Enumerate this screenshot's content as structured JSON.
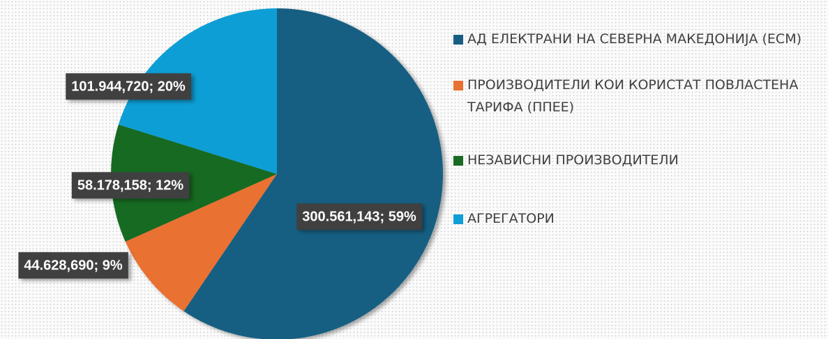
{
  "chart_data": {
    "type": "pie",
    "categories": [
      "АД ЕЛЕКТРАНИ НА СЕВЕРНА МАКЕДОНИЈА (ЕСМ)",
      "ПРОИЗВОДИТЕЛИ КОИ КОРИСТАТ ПОВЛАСТЕНА ТАРИФА  (ППЕЕ)",
      "НЕЗАВИСНИ ПРОИЗВОДИТЕЛИ",
      "АГРЕГАТОРИ"
    ],
    "values": [
      300561.143,
      44628.69,
      58178.158,
      101944.72
    ],
    "value_labels": [
      "300.561,143; 59%",
      "44.628,690; 9%",
      "58.178,158; 12%",
      "101.944,720; 20%"
    ],
    "colors": [
      "#175e82",
      "#e97132",
      "#196b24",
      "#0f9ed5"
    ],
    "legend": "right"
  }
}
